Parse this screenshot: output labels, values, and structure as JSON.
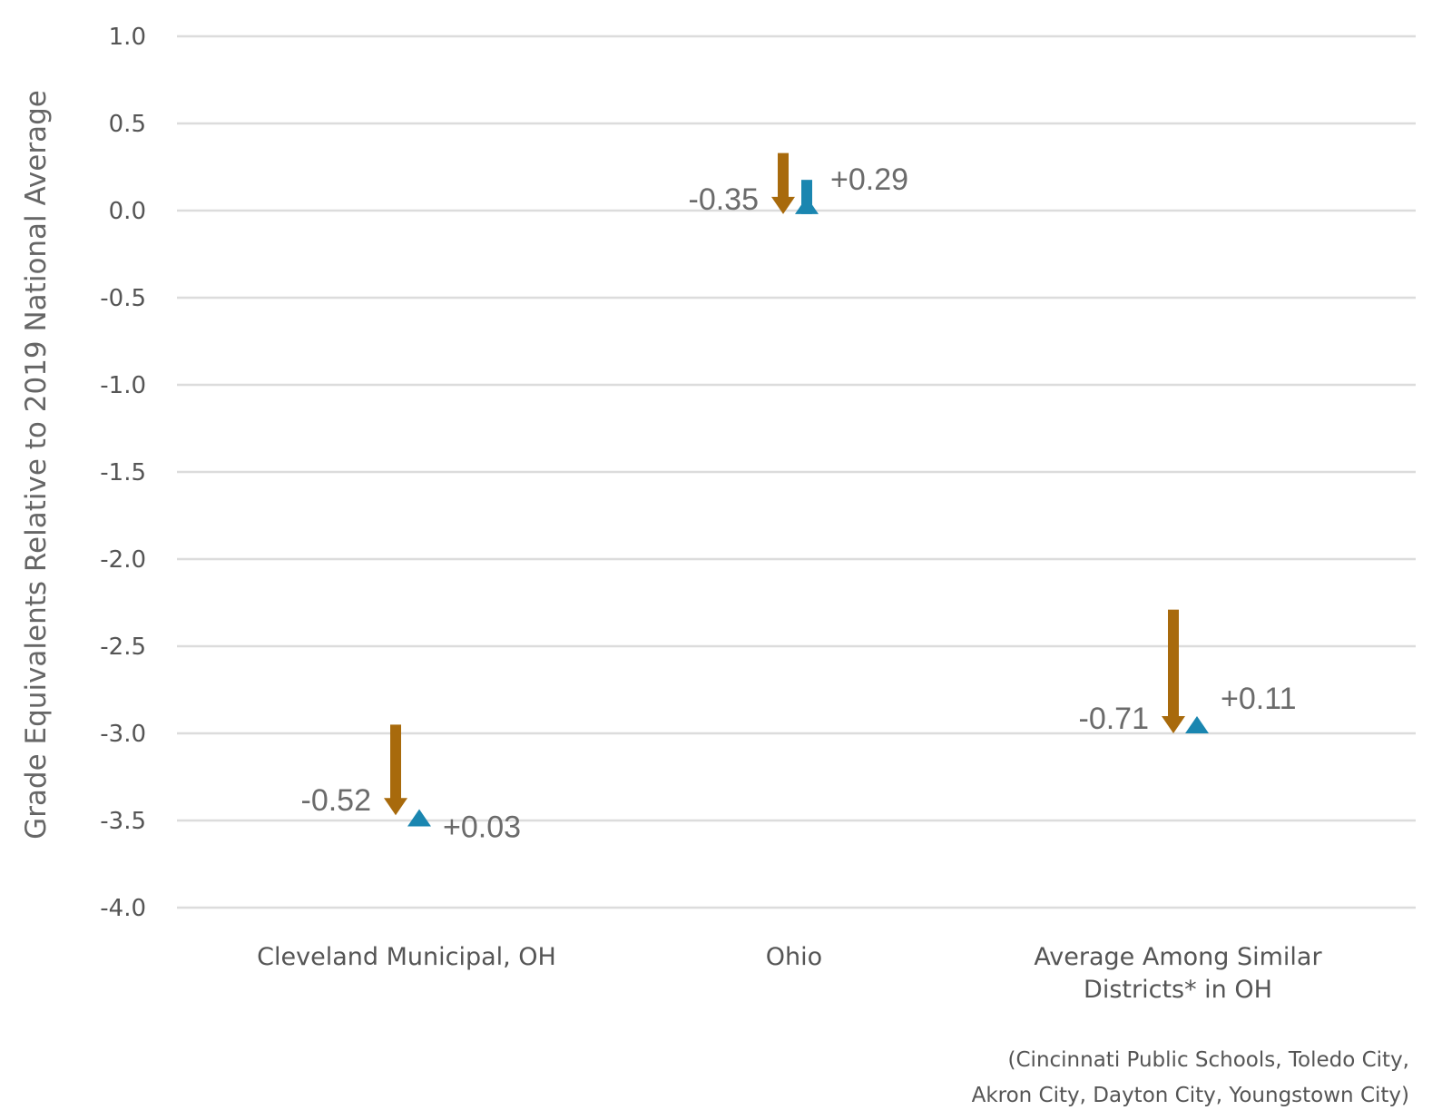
{
  "chart_data": {
    "type": "arrow-change",
    "ylabel": "Grade Equivalents Relative to 2019 National Average",
    "xlabel": "",
    "ylim": [
      -4.0,
      1.0
    ],
    "y_ticks": [
      1.0,
      0.5,
      0.0,
      -0.5,
      -1.0,
      -1.5,
      -2.0,
      -2.5,
      -3.0,
      -3.5,
      -4.0
    ],
    "y_tick_labels": [
      "1.0",
      "0.5",
      "0.0",
      "-0.5",
      "-1.0",
      "-1.5",
      "-2.0",
      "-2.5",
      "-3.0",
      "-3.5",
      "-4.0"
    ],
    "grid": true,
    "categories": [
      {
        "lines": [
          "Cleveland Municipal, OH"
        ]
      },
      {
        "lines": [
          "Ohio"
        ]
      },
      {
        "lines": [
          "Average Among Similar",
          "Districts* in OH"
        ]
      }
    ],
    "points": [
      {
        "start": -2.95,
        "decline": -0.52,
        "decline_label": "-0.52",
        "recovery": 0.03,
        "recovery_label": "+0.03"
      },
      {
        "start": 0.33,
        "decline": -0.35,
        "decline_label": "-0.35",
        "recovery": 0.29,
        "recovery_label": "+0.29"
      },
      {
        "start": -2.29,
        "decline": -0.71,
        "decline_label": "-0.71",
        "recovery": 0.11,
        "recovery_label": "+0.11"
      }
    ],
    "colors": {
      "decline": "#A86A0C",
      "recovery": "#1A86B0"
    },
    "footnote": [
      "(Cincinnati Public Schools, Toledo City,",
      "Akron City, Dayton City, Youngstown City)"
    ]
  }
}
